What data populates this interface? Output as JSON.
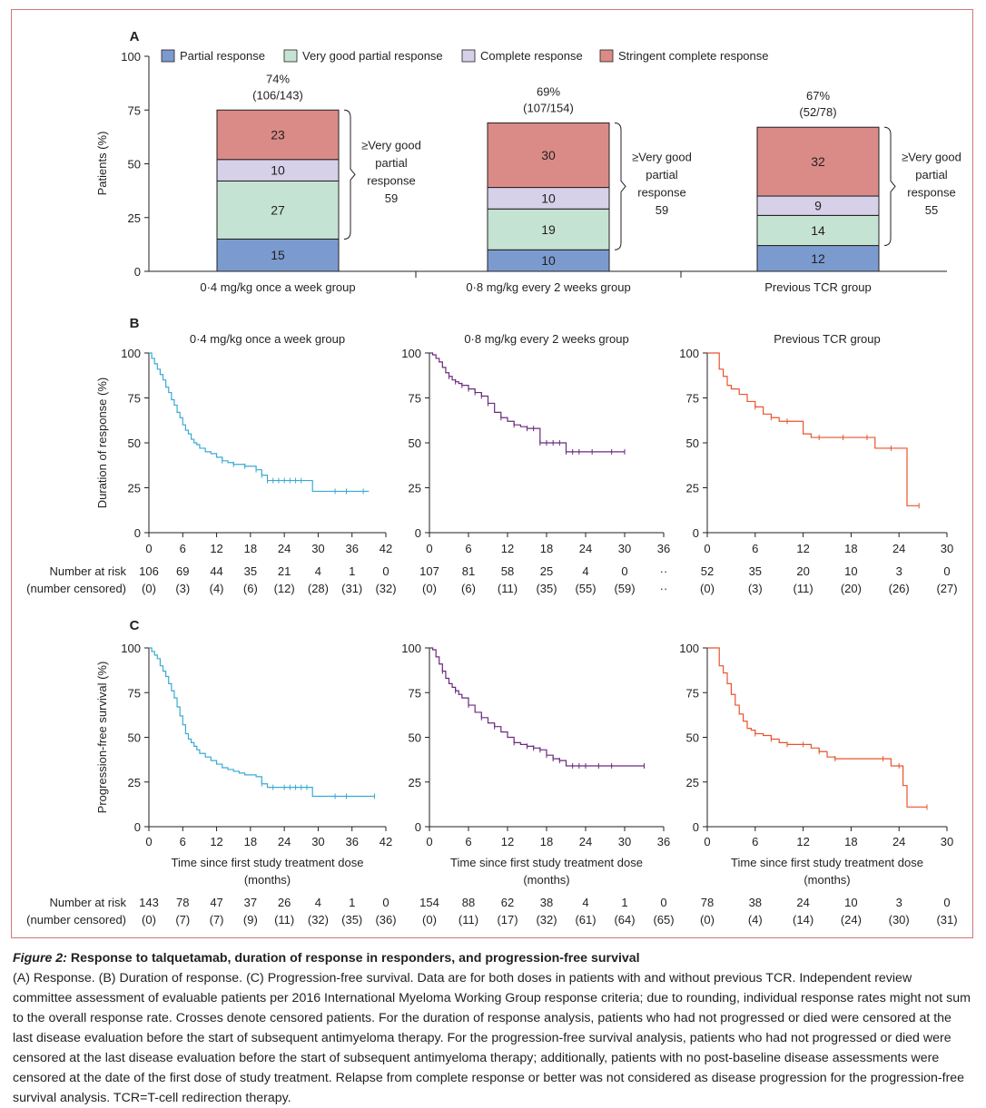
{
  "panel_labels": {
    "a": "A",
    "b": "B",
    "c": "C"
  },
  "colors": {
    "partial": "#7b9bcf",
    "vgpr": "#c5e3d3",
    "complete": "#d6d0e8",
    "stringent": "#da8b88",
    "group1": "#3ba9d4",
    "group2": "#6a2a7e",
    "group3": "#e8542d",
    "frame": "#d2767a"
  },
  "x_axis_label": "Time since first study treatment dose (months)",
  "risk_labels": {
    "number_at_risk": "Number at risk",
    "number_censored": "(number censored)"
  },
  "chart_data": [
    {
      "type": "bar",
      "panel": "A",
      "ylabel": "Patients (%)",
      "ylim": [
        0,
        100
      ],
      "yticks": [
        0,
        25,
        50,
        75,
        100
      ],
      "categories": [
        "0·4 mg/kg once a week group",
        "0·8 mg/kg every 2 weeks group",
        "Previous TCR group"
      ],
      "series": [
        {
          "name": "Partial response",
          "values": [
            15,
            10,
            12
          ]
        },
        {
          "name": "Very good partial response",
          "values": [
            27,
            19,
            14
          ]
        },
        {
          "name": "Complete response",
          "values": [
            10,
            10,
            9
          ]
        },
        {
          "name": "Stringent complete response",
          "values": [
            23,
            30,
            32
          ]
        }
      ],
      "totals": [
        {
          "pct": "74%",
          "frac": "(106/143)"
        },
        {
          "pct": "69%",
          "frac": "(107/154)"
        },
        {
          "pct": "67%",
          "frac": "(52/78)"
        }
      ],
      "brackets": [
        {
          "lines": [
            "≥Very good",
            "partial",
            "response",
            "59"
          ]
        },
        {
          "lines": [
            "≥Very good",
            "partial",
            "response",
            "59"
          ]
        },
        {
          "lines": [
            "≥Very good",
            "partial",
            "response",
            "55"
          ]
        }
      ],
      "legend_placement": "top"
    },
    {
      "type": "line",
      "panel": "B",
      "ylabel": "Duration of response (%)",
      "ylim": [
        0,
        100
      ],
      "yticks": [
        0,
        25,
        50,
        75,
        100
      ],
      "subplots": [
        {
          "title": "0·4 mg/kg once a week group",
          "xlim": [
            0,
            42
          ],
          "xticks": [
            0,
            6,
            12,
            18,
            24,
            30,
            36,
            42
          ],
          "x": [
            0,
            0.5,
            1,
            1.5,
            2,
            2.5,
            3,
            3.5,
            4,
            4.5,
            5,
            5.5,
            6,
            6.5,
            7,
            7.5,
            8,
            8.5,
            9,
            10,
            11,
            12,
            13,
            14,
            15,
            16,
            17,
            18,
            19,
            20,
            21,
            22,
            23,
            24,
            25,
            26,
            27,
            28,
            29,
            30,
            31,
            32,
            33,
            34,
            35,
            36,
            37,
            38,
            39
          ],
          "y": [
            100,
            97,
            94,
            91,
            88,
            85,
            81,
            78,
            74,
            71,
            67,
            64,
            60,
            57,
            55,
            52,
            50,
            49,
            47,
            45,
            44,
            42,
            40,
            39,
            38,
            38,
            37,
            37,
            35,
            32,
            29,
            29,
            29,
            29,
            29,
            29,
            29,
            29,
            23,
            23,
            23,
            23,
            23,
            23,
            23,
            23,
            23,
            23,
            23
          ],
          "censored_x": [
            13,
            15,
            17,
            19,
            20,
            21,
            22,
            23,
            24,
            25,
            26,
            27,
            33,
            35,
            38
          ],
          "risk": [
            "106",
            "69",
            "44",
            "35",
            "21",
            "4",
            "1",
            "0"
          ],
          "censored": [
            "(0)",
            "(3)",
            "(4)",
            "(6)",
            "(12)",
            "(28)",
            "(31)",
            "(32)"
          ]
        },
        {
          "title": "0·8 mg/kg every 2 weeks group",
          "xlim": [
            0,
            36
          ],
          "xticks": [
            0,
            6,
            12,
            18,
            24,
            30,
            36
          ],
          "x": [
            0,
            0.5,
            1,
            1.5,
            2,
            2.5,
            3,
            3.5,
            4,
            4.5,
            5,
            6,
            7,
            8,
            9,
            10,
            11,
            12,
            13,
            14,
            15,
            16,
            17,
            18,
            19,
            20,
            21,
            22,
            23,
            24,
            25,
            26,
            27,
            28,
            29,
            30
          ],
          "y": [
            100,
            99,
            97,
            95,
            92,
            89,
            87,
            85,
            84,
            83,
            82,
            80,
            78,
            76,
            72,
            67,
            64,
            62,
            60,
            59,
            58,
            58,
            50,
            50,
            50,
            50,
            45,
            45,
            45,
            45,
            45,
            45,
            45,
            45,
            45,
            45
          ],
          "censored_x": [
            3,
            4,
            5,
            6,
            7,
            8,
            9,
            11,
            13,
            15,
            16,
            17,
            18,
            19,
            20,
            21,
            22,
            23,
            25,
            28,
            30
          ],
          "risk": [
            "107",
            "81",
            "58",
            "25",
            "4",
            "0",
            "··"
          ],
          "censored": [
            "(0)",
            "(6)",
            "(11)",
            "(35)",
            "(55)",
            "(59)",
            "··"
          ]
        },
        {
          "title": "Previous TCR group",
          "xlim": [
            0,
            30
          ],
          "xticks": [
            0,
            6,
            12,
            18,
            24,
            30
          ],
          "x": [
            0,
            1,
            1.5,
            2,
            2.5,
            3,
            4,
            5,
            6,
            7,
            8,
            9,
            10,
            11,
            12,
            13,
            14,
            15,
            16,
            17,
            18,
            19,
            20,
            21,
            22,
            23,
            24,
            25,
            26,
            26.5
          ],
          "y": [
            100,
            100,
            91,
            87,
            82,
            80,
            77,
            73,
            70,
            66,
            64,
            62,
            62,
            62,
            55,
            53,
            53,
            53,
            53,
            53,
            53,
            53,
            53,
            47,
            47,
            47,
            47,
            15,
            15,
            15
          ],
          "censored_x": [
            6,
            8,
            10,
            14,
            17,
            20,
            23,
            26.5
          ],
          "risk": [
            "52",
            "35",
            "20",
            "10",
            "3",
            "0"
          ],
          "censored": [
            "(0)",
            "(3)",
            "(11)",
            "(20)",
            "(26)",
            "(27)"
          ]
        }
      ]
    },
    {
      "type": "line",
      "panel": "C",
      "ylabel": "Progression-free survival (%)",
      "xlabel": "Time since first study treatment dose (months)",
      "ylim": [
        0,
        100
      ],
      "yticks": [
        0,
        25,
        50,
        75,
        100
      ],
      "subplots": [
        {
          "xlim": [
            0,
            42
          ],
          "xticks": [
            0,
            6,
            12,
            18,
            24,
            30,
            36,
            42
          ],
          "x": [
            0,
            0.5,
            1,
            1.5,
            2,
            2.5,
            3,
            3.5,
            4,
            4.5,
            5,
            5.5,
            6,
            6.5,
            7,
            7.5,
            8,
            8.5,
            9,
            10,
            11,
            12,
            13,
            14,
            15,
            16,
            17,
            18,
            19,
            20,
            21,
            22,
            23,
            24,
            25,
            26,
            27,
            28,
            29,
            30,
            32,
            34,
            36,
            38,
            40
          ],
          "y": [
            100,
            98,
            96,
            94,
            90,
            87,
            84,
            80,
            76,
            72,
            67,
            62,
            57,
            52,
            49,
            47,
            45,
            43,
            41,
            39,
            37,
            35,
            33,
            32,
            31,
            30,
            29,
            29,
            28,
            24,
            22,
            22,
            22,
            22,
            22,
            22,
            22,
            22,
            17,
            17,
            17,
            17,
            17,
            17,
            17
          ],
          "censored_x": [
            20,
            22,
            24,
            25,
            26,
            27,
            28,
            33,
            35,
            40
          ],
          "risk": [
            "143",
            "78",
            "47",
            "37",
            "26",
            "4",
            "1",
            "0"
          ],
          "censored": [
            "(0)",
            "(7)",
            "(7)",
            "(9)",
            "(11)",
            "(32)",
            "(35)",
            "(36)"
          ]
        },
        {
          "xlim": [
            0,
            36
          ],
          "xticks": [
            0,
            6,
            12,
            18,
            24,
            30,
            36
          ],
          "x": [
            0,
            0.5,
            1,
            1.5,
            2,
            2.5,
            3,
            3.5,
            4,
            4.5,
            5,
            6,
            7,
            8,
            9,
            10,
            11,
            12,
            13,
            14,
            15,
            16,
            17,
            18,
            19,
            20,
            21,
            22,
            23,
            24,
            25,
            26,
            28,
            30,
            32,
            33
          ],
          "y": [
            100,
            99,
            95,
            91,
            87,
            83,
            80,
            78,
            76,
            74,
            72,
            68,
            64,
            61,
            58,
            56,
            53,
            50,
            47,
            46,
            45,
            44,
            43,
            40,
            38,
            37,
            34,
            34,
            34,
            34,
            34,
            34,
            34,
            34,
            34,
            34
          ],
          "censored_x": [
            2,
            4,
            6,
            8,
            10,
            13,
            15,
            16,
            17,
            18,
            19,
            20,
            22,
            23,
            24,
            26,
            28,
            33
          ],
          "risk": [
            "154",
            "88",
            "62",
            "38",
            "4",
            "1",
            "0"
          ],
          "censored": [
            "(0)",
            "(11)",
            "(17)",
            "(32)",
            "(61)",
            "(64)",
            "(65)"
          ]
        },
        {
          "xlim": [
            0,
            30
          ],
          "xticks": [
            0,
            6,
            12,
            18,
            24,
            30
          ],
          "x": [
            0,
            1,
            1.5,
            2,
            2.5,
            3,
            3.5,
            4,
            4.5,
            5,
            5.5,
            6,
            7,
            8,
            9,
            10,
            11,
            12,
            13,
            14,
            15,
            16,
            17,
            18,
            19,
            20,
            21,
            22,
            23,
            24,
            24.5,
            25,
            26,
            27,
            27.5
          ],
          "y": [
            100,
            100,
            90,
            86,
            80,
            74,
            68,
            63,
            59,
            55,
            54,
            52,
            51,
            49,
            47,
            46,
            46,
            46,
            44,
            42,
            39,
            38,
            38,
            38,
            38,
            38,
            38,
            38,
            34,
            34,
            23,
            11,
            11,
            11,
            11
          ],
          "censored_x": [
            6,
            8,
            10,
            12,
            14,
            16,
            22,
            24,
            27.5
          ],
          "risk": [
            "78",
            "38",
            "24",
            "10",
            "3",
            "0"
          ],
          "censored": [
            "(0)",
            "(4)",
            "(14)",
            "(24)",
            "(30)",
            "(31)"
          ]
        }
      ]
    }
  ],
  "caption": {
    "figure_number": "Figure 2:",
    "title": "Response to talquetamab, duration of response in responders, and progression-free survival",
    "body": "(A) Response. (B) Duration of response. (C) Progression-free survival. Data are for both doses in patients with and without previous TCR. Independent review committee assessment of evaluable patients per 2016 International Myeloma Working Group response criteria; due to rounding, individual response rates might not sum to the overall response rate. Crosses denote censored patients. For the duration of response analysis, patients who had not progressed or died were censored at the last disease evaluation before the start of subsequent antimyeloma therapy. For the progression-free survival analysis, patients who had not progressed or died were censored at the last disease evaluation before the start of subsequent antimyeloma therapy; additionally, patients with no post-baseline disease assessments were censored at the date of the first dose of study treatment. Relapse from complete response or better was not considered as disease progression for the progression-free survival analysis. TCR=T-cell redirection therapy."
  }
}
